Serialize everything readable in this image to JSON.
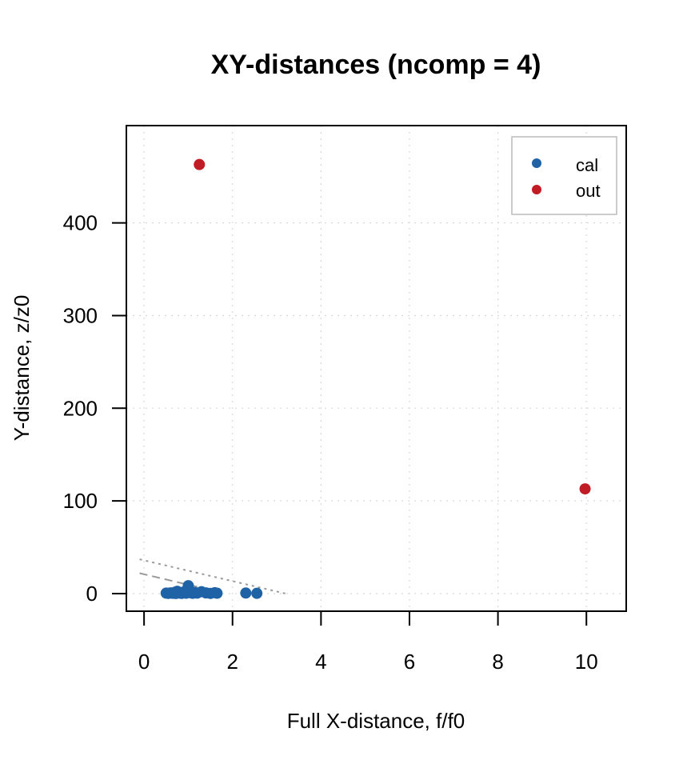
{
  "chart_data": {
    "type": "scatter",
    "title": "XY-distances (ncomp = 4)",
    "xlabel": "Full X-distance, f/f0",
    "ylabel": "Y-distance, z/z0",
    "xlim": [
      -0.4,
      10.9
    ],
    "ylim": [
      -19,
      505
    ],
    "xticks": [
      0,
      2,
      4,
      6,
      8,
      10
    ],
    "yticks": [
      0,
      100,
      200,
      300,
      400
    ],
    "xtick_labels": [
      "0",
      "2",
      "4",
      "6",
      "8",
      "10"
    ],
    "ytick_labels": [
      "0",
      "100",
      "200",
      "300",
      "400"
    ],
    "grid": true,
    "legend_position": "top-right",
    "series": [
      {
        "name": "cal",
        "color": "#1f63a6",
        "points": [
          [
            0.5,
            0.5
          ],
          [
            0.55,
            0.2
          ],
          [
            0.6,
            0.8
          ],
          [
            0.65,
            0.3
          ],
          [
            0.7,
            1.5
          ],
          [
            0.72,
            0.1
          ],
          [
            0.75,
            2.5
          ],
          [
            0.8,
            0.6
          ],
          [
            0.85,
            0.2
          ],
          [
            0.9,
            1.8
          ],
          [
            0.95,
            0.4
          ],
          [
            1.0,
            8.5
          ],
          [
            1.05,
            0.9
          ],
          [
            1.1,
            0.3
          ],
          [
            1.15,
            1.2
          ],
          [
            1.2,
            0.5
          ],
          [
            1.3,
            2.0
          ],
          [
            1.4,
            0.7
          ],
          [
            1.5,
            0.2
          ],
          [
            1.6,
            1.0
          ],
          [
            1.65,
            0.4
          ],
          [
            2.3,
            0.6
          ],
          [
            2.55,
            0.3
          ]
        ]
      },
      {
        "name": "out",
        "color": "#c01c25",
        "points": [
          [
            1.25,
            463
          ],
          [
            9.97,
            113
          ]
        ]
      }
    ],
    "limit_lines": [
      {
        "style": "dashed",
        "color": "#999999",
        "x": [
          -0.1,
          1.85
        ],
        "y": [
          22,
          0
        ]
      },
      {
        "style": "dotted",
        "color": "#999999",
        "x": [
          -0.1,
          3.2
        ],
        "y": [
          37,
          0
        ]
      }
    ]
  }
}
